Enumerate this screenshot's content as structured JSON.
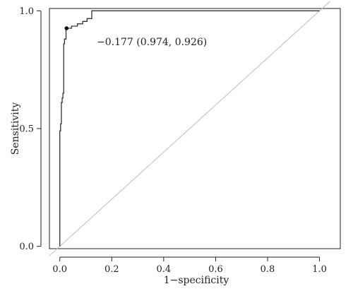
{
  "chart_data": {
    "type": "line",
    "title": "",
    "xlabel": "1−specificity",
    "ylabel": "Sensitivity",
    "xlim": [
      -0.04,
      1.08
    ],
    "ylim": [
      -0.01,
      1.01
    ],
    "x_ticks": [
      0.0,
      0.2,
      0.4,
      0.6,
      0.8,
      1.0
    ],
    "x_tick_labels": [
      "0.0",
      "0.2",
      "0.4",
      "0.6",
      "0.8",
      "1.0"
    ],
    "y_ticks": [
      0.0,
      0.5,
      1.0
    ],
    "y_tick_labels": [
      "0.0",
      "0.5",
      "1.0"
    ],
    "grid": false,
    "legend": "none",
    "series": [
      {
        "color": "#333333",
        "x": [
          0.0,
          0.0,
          0.003,
          0.003,
          0.006,
          0.006,
          0.009,
          0.009,
          0.012,
          0.012,
          0.015,
          0.015,
          0.018,
          0.018,
          0.024,
          0.024,
          0.045,
          0.045,
          0.068,
          0.068,
          0.088,
          0.088,
          0.105,
          0.105,
          0.123,
          0.123,
          1.0
        ],
        "y": [
          0.0,
          0.49,
          0.49,
          0.52,
          0.52,
          0.61,
          0.61,
          0.63,
          0.63,
          0.65,
          0.65,
          0.86,
          0.86,
          0.88,
          0.88,
          0.926,
          0.926,
          0.935,
          0.935,
          0.945,
          0.945,
          0.955,
          0.955,
          0.967,
          0.967,
          1.0,
          1.0
        ]
      }
    ],
    "reference_line": {
      "x": [
        -0.04,
        1.04
      ],
      "y": [
        -0.04,
        1.04
      ],
      "color": "#bdbdbd"
    },
    "highlight_point": {
      "x": 0.026,
      "y": 0.926,
      "color": "#111111"
    },
    "annotation": {
      "text": "−0.177 (0.974, 0.926)",
      "x": 0.026,
      "y": 0.926
    }
  }
}
